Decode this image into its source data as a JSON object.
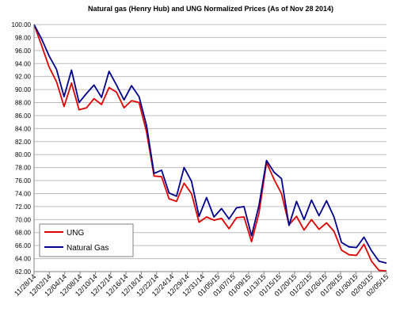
{
  "chart_data": {
    "type": "line",
    "title": "Natural gas (Henry Hub) and UNG Normalized Prices (As of Nov 28 2014)",
    "xlabel": "",
    "ylabel": "",
    "ylim": [
      62,
      100
    ],
    "ytick_step": 2,
    "grid": true,
    "legend_position": "bottom-left",
    "x_ticks": [
      "11/28/14",
      "12/02/14",
      "12/04/14",
      "12/08/14",
      "12/10/14",
      "12/12/14",
      "12/16/14",
      "12/18/14",
      "12/22/14",
      "12/24/14",
      "12/29/14",
      "12/31/14",
      "01/05/15",
      "01/07/15",
      "01/09/15",
      "01/13/15",
      "01/15/15",
      "01/20/15",
      "01/22/15",
      "01/26/15",
      "01/28/15",
      "01/30/15",
      "02/03/15",
      "02/05/15"
    ],
    "series": [
      {
        "name": "UNG",
        "color": "#e00000",
        "values": [
          100,
          96.8,
          93.5,
          91.2,
          87.4,
          91,
          86.9,
          87.2,
          88.6,
          87.7,
          90.3,
          89.6,
          87.2,
          88.3,
          88,
          83.5,
          76.7,
          76.6,
          73.2,
          72.8,
          75.6,
          74,
          69.6,
          70.4,
          69.9,
          70.2,
          68.6,
          70.3,
          70.4,
          66.6,
          71,
          78.8,
          76.2,
          74,
          69.2,
          70.5,
          68.4,
          70,
          68.5,
          69.5,
          68.2,
          65.3,
          64.6,
          64.5,
          66.2,
          63.6,
          62.2,
          62.1
        ]
      },
      {
        "name": "Natural Gas",
        "color": "#00008c",
        "values": [
          100,
          97.8,
          95.2,
          93.1,
          88.9,
          93,
          88,
          89.4,
          90.7,
          88.8,
          92.8,
          90.7,
          88.4,
          90.6,
          88.9,
          84.5,
          77.1,
          77.6,
          74.1,
          73.6,
          78,
          75.9,
          70.5,
          73.4,
          70.4,
          71.7,
          70.1,
          71.8,
          72,
          67.5,
          72.2,
          79.1,
          77.3,
          76.3,
          69.1,
          72.8,
          70,
          73,
          70.6,
          72.9,
          70.4,
          66.5,
          65.8,
          65.7,
          67.3,
          65.2,
          63.6,
          63.3
        ]
      }
    ]
  }
}
